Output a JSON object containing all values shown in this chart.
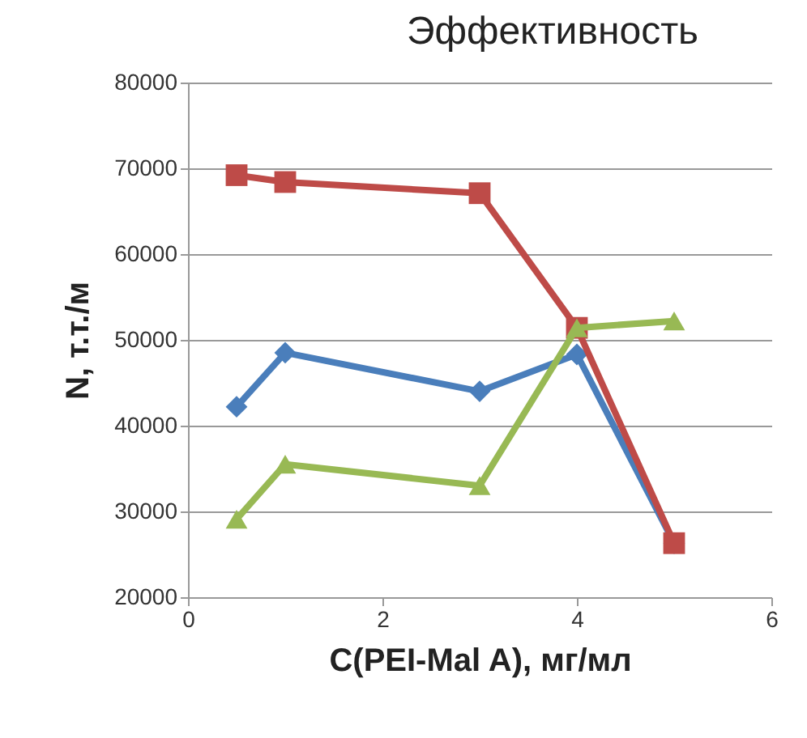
{
  "chart_data": {
    "type": "line",
    "title": "Эффективность",
    "xlabel": "C(PEI-Mal A), мг/мл",
    "ylabel": "N, т.т./м",
    "x": [
      0.5,
      1,
      3,
      4,
      5
    ],
    "series": [
      {
        "color": "#4a7ebb",
        "marker": "diamond",
        "values": [
          42200,
          48500,
          44000,
          48300,
          26300
        ]
      },
      {
        "color": "#be4b48",
        "marker": "square",
        "values": [
          69200,
          68400,
          67100,
          51400,
          26300
        ]
      },
      {
        "color": "#98b954",
        "marker": "triangle",
        "values": [
          29100,
          35500,
          33000,
          51400,
          52200
        ]
      }
    ],
    "xlim": [
      0,
      6
    ],
    "xticks": [
      0,
      2,
      4,
      6
    ],
    "ylim": [
      20000,
      80000
    ],
    "yticks": [
      20000,
      30000,
      40000,
      50000,
      60000,
      70000,
      80000
    ],
    "grid": "y"
  }
}
